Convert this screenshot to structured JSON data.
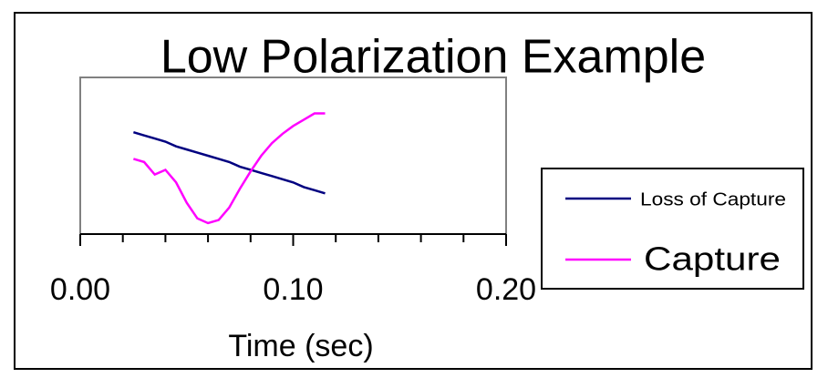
{
  "chart_data": {
    "type": "line",
    "title": "Low Polarization  Example",
    "xlabel": "Time (sec)",
    "x": [
      0.025,
      0.03,
      0.035,
      0.04,
      0.045,
      0.05,
      0.055,
      0.06,
      0.065,
      0.07,
      0.075,
      0.08,
      0.085,
      0.09,
      0.095,
      0.1,
      0.105,
      0.11,
      0.115
    ],
    "series": [
      {
        "name": "Loss of Capture",
        "color": "#000080",
        "values": [
          0.65,
          0.63,
          0.61,
          0.59,
          0.56,
          0.54,
          0.52,
          0.5,
          0.48,
          0.46,
          0.43,
          0.41,
          0.39,
          0.37,
          0.35,
          0.33,
          0.3,
          0.28,
          0.26
        ]
      },
      {
        "name": "Capture",
        "color": "#ff00ff",
        "values": [
          0.48,
          0.46,
          0.38,
          0.41,
          0.33,
          0.2,
          0.1,
          0.07,
          0.09,
          0.17,
          0.29,
          0.4,
          0.5,
          0.58,
          0.64,
          0.69,
          0.73,
          0.77,
          0.77
        ]
      }
    ],
    "xlim": [
      0,
      0.2
    ],
    "xticks": [
      {
        "value": 0,
        "label": "0.00"
      },
      {
        "value": 0.1,
        "label": "0.10"
      },
      {
        "value": 0.2,
        "label": "0.20"
      }
    ],
    "xminorticks": [
      0.02,
      0.04,
      0.06,
      0.08,
      0.12,
      0.14,
      0.16,
      0.18
    ],
    "ylim": [
      0,
      1
    ],
    "legend": "right"
  }
}
